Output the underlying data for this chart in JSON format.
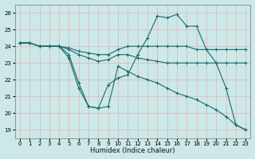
{
  "xlabel": "Humidex (Indice chaleur)",
  "bg_color": "#cce8e8",
  "grid_color": "#ddbbbb",
  "line_color": "#1a6b6b",
  "xlim": [
    -0.5,
    23.5
  ],
  "ylim": [
    18.5,
    26.5
  ],
  "yticks": [
    19,
    20,
    21,
    22,
    23,
    24,
    25,
    26
  ],
  "xticks": [
    0,
    1,
    2,
    3,
    4,
    5,
    6,
    7,
    8,
    9,
    10,
    11,
    12,
    13,
    14,
    15,
    16,
    17,
    18,
    19,
    20,
    21,
    22,
    23
  ],
  "lines": [
    {
      "x": [
        0,
        1,
        2,
        3,
        4,
        5,
        6,
        7,
        8,
        9,
        10,
        11,
        12,
        13,
        14,
        15,
        16,
        17,
        18,
        19,
        20,
        21,
        22,
        23
      ],
      "y": [
        24.2,
        24.2,
        24.0,
        24.0,
        24.0,
        23.5,
        21.8,
        20.4,
        20.3,
        21.7,
        22.1,
        22.3,
        23.5,
        24.5,
        25.8,
        25.7,
        25.9,
        25.2,
        25.2,
        23.8,
        23.0,
        21.5,
        19.3,
        19.0
      ]
    },
    {
      "x": [
        0,
        1,
        2,
        3,
        4,
        5,
        6,
        7,
        8,
        9,
        10,
        11,
        12,
        13,
        14,
        15,
        16,
        17,
        18,
        19,
        20,
        21,
        22,
        23
      ],
      "y": [
        24.2,
        24.2,
        24.0,
        24.0,
        24.0,
        23.9,
        23.7,
        23.6,
        23.5,
        23.5,
        23.8,
        24.0,
        24.0,
        24.0,
        24.0,
        24.0,
        24.0,
        24.0,
        23.8,
        23.8,
        23.8,
        23.8,
        23.8,
        23.8
      ]
    },
    {
      "x": [
        0,
        1,
        2,
        3,
        4,
        5,
        6,
        7,
        8,
        9,
        10,
        11,
        12,
        13,
        14,
        15,
        16,
        17,
        18,
        19,
        20,
        21,
        22,
        23
      ],
      "y": [
        24.2,
        24.2,
        24.0,
        24.0,
        24.0,
        23.8,
        23.5,
        23.3,
        23.1,
        23.2,
        23.5,
        23.5,
        23.3,
        23.2,
        23.1,
        23.0,
        23.0,
        23.0,
        23.0,
        23.0,
        23.0,
        23.0,
        23.0,
        23.0
      ]
    },
    {
      "x": [
        0,
        1,
        2,
        3,
        4,
        5,
        6,
        7,
        8,
        9,
        10,
        11,
        12,
        13,
        14,
        15,
        16,
        17,
        18,
        19,
        20,
        21,
        22,
        23
      ],
      "y": [
        24.2,
        24.2,
        24.0,
        24.0,
        24.0,
        23.3,
        21.5,
        20.4,
        20.3,
        20.4,
        22.8,
        22.5,
        22.2,
        22.0,
        21.8,
        21.5,
        21.2,
        21.0,
        20.8,
        20.5,
        20.2,
        19.8,
        19.3,
        19.0
      ]
    }
  ]
}
